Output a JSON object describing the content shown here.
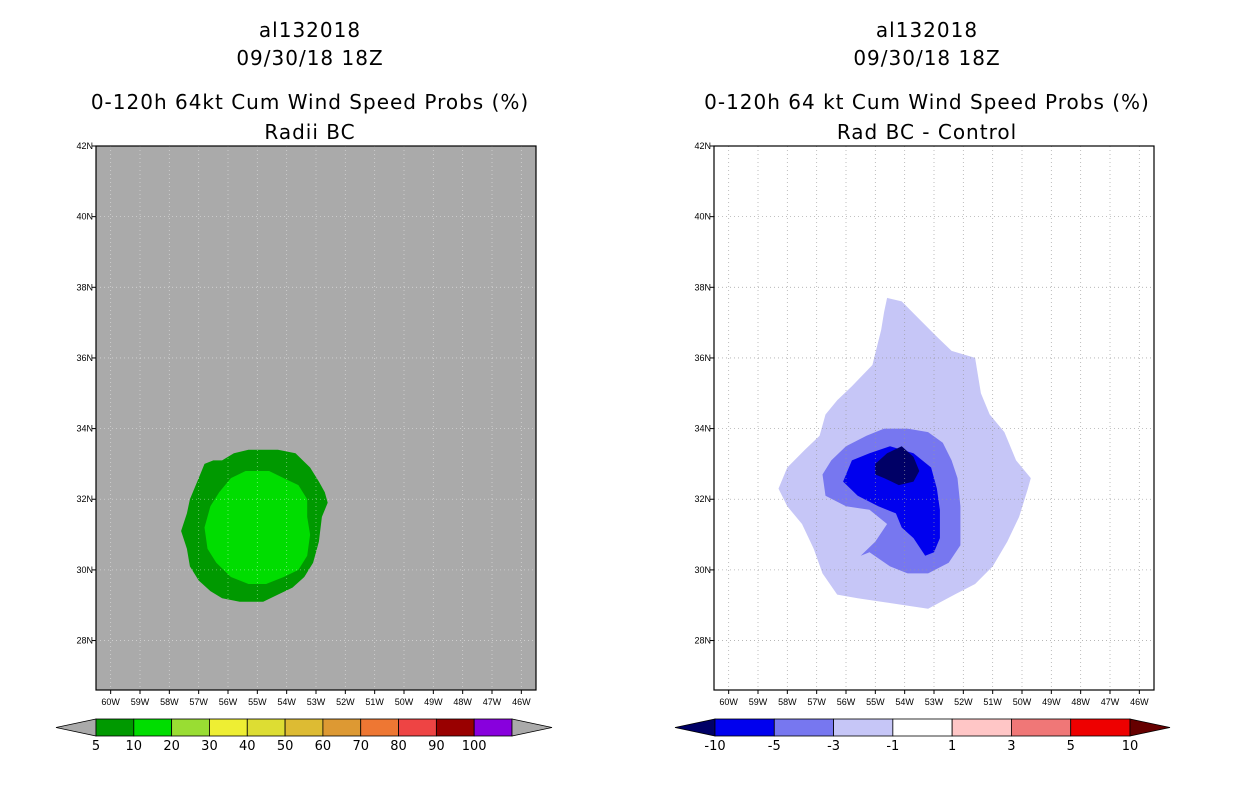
{
  "chart_data": [
    {
      "type": "filled-contour-map",
      "storm_id": "al132018",
      "datetime": "09/30/18 18Z",
      "title": "0-120h 64kt Cum Wind Speed Probs (%)",
      "subtitle": "Radii BC",
      "x_ticks": [
        "60W",
        "59W",
        "58W",
        "57W",
        "56W",
        "55W",
        "54W",
        "53W",
        "52W",
        "51W",
        "50W",
        "49W",
        "48W",
        "47W",
        "46W"
      ],
      "y_ticks": [
        "28N",
        "30N",
        "32N",
        "34N",
        "36N",
        "38N",
        "40N",
        "42N"
      ],
      "xlim": [
        -60.5,
        -45.5
      ],
      "ylim": [
        26.6,
        42
      ],
      "background_color": "#aaaaaa",
      "levels": [
        {
          "range": "5-10",
          "color": "#009900",
          "polygon": [
            [
              -57,
              32.6
            ],
            [
              -56.8,
              33
            ],
            [
              -56.5,
              33.1
            ],
            [
              -56.2,
              33.1
            ],
            [
              -55.8,
              33.3
            ],
            [
              -55.3,
              33.4
            ],
            [
              -54.3,
              33.4
            ],
            [
              -53.7,
              33.3
            ],
            [
              -53.2,
              32.9
            ],
            [
              -52.9,
              32.5
            ],
            [
              -52.7,
              32.2
            ],
            [
              -52.6,
              31.9
            ],
            [
              -52.8,
              31.5
            ],
            [
              -52.9,
              30.8
            ],
            [
              -53.1,
              30.2
            ],
            [
              -53.4,
              29.8
            ],
            [
              -53.8,
              29.5
            ],
            [
              -54.3,
              29.3
            ],
            [
              -54.8,
              29.1
            ],
            [
              -55.6,
              29.1
            ],
            [
              -56.2,
              29.2
            ],
            [
              -56.6,
              29.4
            ],
            [
              -57,
              29.7
            ],
            [
              -57.3,
              30.1
            ],
            [
              -57.4,
              30.6
            ],
            [
              -57.6,
              31.1
            ],
            [
              -57.4,
              31.6
            ],
            [
              -57.3,
              32
            ]
          ]
        },
        {
          "range": "10-20",
          "color": "#00dd00",
          "polygon": [
            [
              -56.3,
              32.2
            ],
            [
              -55.9,
              32.6
            ],
            [
              -55.4,
              32.8
            ],
            [
              -54.6,
              32.8
            ],
            [
              -54.1,
              32.6
            ],
            [
              -53.6,
              32.4
            ],
            [
              -53.3,
              32
            ],
            [
              -53.3,
              31.5
            ],
            [
              -53.2,
              31
            ],
            [
              -53.3,
              30.4
            ],
            [
              -53.6,
              30
            ],
            [
              -54.1,
              29.8
            ],
            [
              -54.7,
              29.6
            ],
            [
              -55.3,
              29.6
            ],
            [
              -55.9,
              29.8
            ],
            [
              -56.4,
              30.2
            ],
            [
              -56.7,
              30.6
            ],
            [
              -56.8,
              31.2
            ],
            [
              -56.6,
              31.8
            ]
          ]
        }
      ],
      "colorbar": {
        "labels": [
          "5",
          "10",
          "20",
          "30",
          "40",
          "50",
          "60",
          "70",
          "80",
          "90",
          "100"
        ],
        "colors": [
          "#009900",
          "#00dd00",
          "#99dd33",
          "#eeee33",
          "#dddd33",
          "#ddbb33",
          "#dd9933",
          "#ee7733",
          "#ee4444",
          "#990000",
          "#8800dd"
        ],
        "extension_colors": [
          "#aaaaaa",
          "#aaaaaa"
        ]
      }
    },
    {
      "type": "filled-contour-map",
      "storm_id": "al132018",
      "datetime": "09/30/18 18Z",
      "title": "0-120h 64 kt Cum Wind Speed Probs (%)",
      "subtitle": "Rad BC - Control",
      "x_ticks": [
        "60W",
        "59W",
        "58W",
        "57W",
        "56W",
        "55W",
        "54W",
        "53W",
        "52W",
        "51W",
        "50W",
        "49W",
        "48W",
        "47W",
        "46W"
      ],
      "y_ticks": [
        "28N",
        "30N",
        "32N",
        "34N",
        "36N",
        "38N",
        "40N",
        "42N"
      ],
      "xlim": [
        -60.5,
        -45.5
      ],
      "ylim": [
        26.6,
        42
      ],
      "background_color": "#ffffff",
      "grid": true,
      "levels": [
        {
          "range": "-3 to -1",
          "color": "#c6c6f7",
          "polygon": [
            [
              -54.6,
              37.7
            ],
            [
              -54.1,
              37.6
            ],
            [
              -53.5,
              37.1
            ],
            [
              -52.9,
              36.6
            ],
            [
              -52.4,
              36.2
            ],
            [
              -51.6,
              36
            ],
            [
              -51.4,
              35
            ],
            [
              -51.1,
              34.4
            ],
            [
              -50.6,
              33.9
            ],
            [
              -50.2,
              33.1
            ],
            [
              -49.7,
              32.6
            ],
            [
              -49.8,
              32.3
            ],
            [
              -50.1,
              31.5
            ],
            [
              -50.5,
              30.8
            ],
            [
              -51,
              30.1
            ],
            [
              -51.6,
              29.6
            ],
            [
              -52.3,
              29.3
            ],
            [
              -53.2,
              28.9
            ],
            [
              -54,
              29
            ],
            [
              -54.8,
              29.1
            ],
            [
              -55.6,
              29.2
            ],
            [
              -56.3,
              29.3
            ],
            [
              -56.8,
              29.9
            ],
            [
              -57.1,
              30.6
            ],
            [
              -57.5,
              31.3
            ],
            [
              -58,
              31.8
            ],
            [
              -58.3,
              32.3
            ],
            [
              -58,
              32.9
            ],
            [
              -57.4,
              33.4
            ],
            [
              -56.9,
              33.8
            ],
            [
              -56.7,
              34.4
            ],
            [
              -56.3,
              34.8
            ],
            [
              -55.8,
              35.2
            ],
            [
              -55.1,
              35.8
            ],
            [
              -54.8,
              36.8
            ],
            [
              -54.7,
              37.3
            ]
          ]
        },
        {
          "range": "-5 to -3",
          "color": "#7777f0",
          "polygon": [
            [
              -56.5,
              33.1
            ],
            [
              -56,
              33.5
            ],
            [
              -55.3,
              33.8
            ],
            [
              -54.7,
              34
            ],
            [
              -53.9,
              34
            ],
            [
              -53.2,
              33.9
            ],
            [
              -52.7,
              33.6
            ],
            [
              -52.4,
              33.1
            ],
            [
              -52.2,
              32.6
            ],
            [
              -52.1,
              31.8
            ],
            [
              -52.1,
              31.2
            ],
            [
              -52.1,
              30.7
            ],
            [
              -52.5,
              30.2
            ],
            [
              -53.2,
              29.9
            ],
            [
              -53.9,
              29.9
            ],
            [
              -54.5,
              30.1
            ],
            [
              -55.2,
              30.5
            ],
            [
              -55.5,
              30.4
            ],
            [
              -55,
              30.8
            ],
            [
              -54.6,
              31.3
            ],
            [
              -55.2,
              31.7
            ],
            [
              -56,
              31.8
            ],
            [
              -56.7,
              32.1
            ],
            [
              -56.8,
              32.7
            ]
          ]
        },
        {
          "range": "-10 to -5",
          "color": "#0000ee",
          "polygon": [
            [
              -55.8,
              33.1
            ],
            [
              -55.2,
              33.3
            ],
            [
              -54.5,
              33.5
            ],
            [
              -53.7,
              33.3
            ],
            [
              -53.1,
              32.9
            ],
            [
              -52.9,
              32.3
            ],
            [
              -52.8,
              31.7
            ],
            [
              -52.8,
              30.9
            ],
            [
              -53,
              30.5
            ],
            [
              -53.3,
              30.4
            ],
            [
              -53.7,
              30.9
            ],
            [
              -54.1,
              31.2
            ],
            [
              -54.3,
              31.6
            ],
            [
              -54.9,
              31.8
            ],
            [
              -55.6,
              32.1
            ],
            [
              -56.1,
              32.5
            ]
          ]
        },
        {
          "range": "< -10",
          "color": "#000066",
          "polygon": [
            [
              -55,
              33
            ],
            [
              -54.6,
              33.3
            ],
            [
              -54.1,
              33.5
            ],
            [
              -53.7,
              33.2
            ],
            [
              -53.5,
              32.8
            ],
            [
              -53.7,
              32.5
            ],
            [
              -54.2,
              32.4
            ],
            [
              -54.7,
              32.6
            ],
            [
              -55,
              32.7
            ]
          ]
        }
      ],
      "colorbar": {
        "labels": [
          "-10",
          "-5",
          "-3",
          "-1",
          "1",
          "3",
          "5",
          "10"
        ],
        "colors": [
          "#0000ee",
          "#7777f0",
          "#c6c6f7",
          "#ffffff",
          "#ffc6c6",
          "#f07777",
          "#ee0000"
        ],
        "extension_colors": [
          "#000066",
          "#660000"
        ]
      }
    }
  ]
}
